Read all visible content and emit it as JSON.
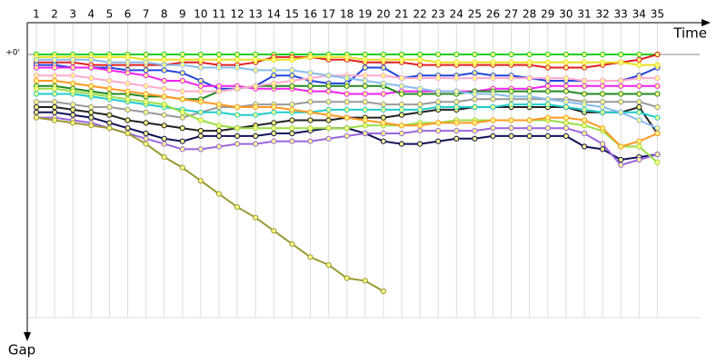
{
  "chart_data": {
    "type": "line",
    "x_label": "Time",
    "y_label": "Gap",
    "categories": [
      "1",
      "2",
      "3",
      "4",
      "5",
      "6",
      "7",
      "8",
      "9",
      "10",
      "11",
      "12",
      "13",
      "14",
      "15",
      "16",
      "17",
      "18",
      "19",
      "20",
      "21",
      "22",
      "23",
      "24",
      "25",
      "26",
      "27",
      "28",
      "29",
      "30",
      "31",
      "32",
      "33",
      "34",
      "35"
    ],
    "ylim": [
      0,
      100
    ],
    "yticks": [
      {
        "value": 0,
        "label": "+0'"
      }
    ],
    "grid": true,
    "series": [
      {
        "color": "#22cc22",
        "values": [
          0,
          0,
          0,
          0,
          0,
          0,
          0,
          0,
          0,
          0,
          0,
          0,
          0,
          0,
          0,
          0,
          0,
          0,
          0,
          0,
          0,
          0,
          0,
          0,
          0,
          0,
          0,
          0,
          0,
          0,
          0,
          0,
          0,
          0,
          0
        ]
      },
      {
        "color": "#e02020",
        "values": [
          3,
          3,
          3,
          4,
          4,
          4,
          4,
          4,
          3,
          3,
          4,
          4,
          3,
          1,
          1,
          1,
          2,
          2,
          3,
          3,
          3,
          4,
          4,
          4,
          4,
          4,
          4,
          4,
          5,
          5,
          5,
          4,
          3,
          2,
          0
        ]
      },
      {
        "color": "#2244dd",
        "values": [
          4,
          4,
          5,
          5,
          5,
          6,
          6,
          6,
          7,
          10,
          13,
          13,
          12,
          8,
          8,
          10,
          11,
          11,
          5,
          5,
          9,
          8,
          8,
          8,
          7,
          8,
          8,
          9,
          10,
          10,
          10,
          10,
          10,
          8,
          5
        ]
      },
      {
        "color": "#e8e020",
        "values": [
          1,
          1,
          1,
          1,
          1,
          1,
          2,
          2,
          2,
          2,
          2,
          2,
          2,
          2,
          2,
          1,
          1,
          1,
          2,
          2,
          2,
          2,
          3,
          3,
          3,
          3,
          3,
          3,
          3,
          3,
          3,
          3,
          3,
          4,
          4
        ]
      },
      {
        "color": "#ee22ee",
        "values": [
          5,
          5,
          5,
          5,
          6,
          7,
          8,
          10,
          10,
          12,
          12,
          12,
          13,
          13,
          13,
          14,
          14,
          15,
          15,
          15,
          14,
          14,
          14,
          14,
          14,
          13,
          13,
          13,
          12,
          12,
          12,
          12,
          12,
          12,
          12
        ]
      },
      {
        "color": "#228822",
        "values": [
          12,
          12,
          13,
          14,
          15,
          15,
          16,
          16,
          17,
          17,
          14,
          13,
          12,
          12,
          12,
          12,
          12,
          12,
          12,
          12,
          15,
          15,
          15,
          15,
          14,
          14,
          14,
          14,
          14,
          14,
          15,
          15,
          15,
          15,
          15
        ]
      },
      {
        "color": "#222222",
        "values": [
          20,
          20,
          21,
          22,
          23,
          25,
          26,
          27,
          28,
          29,
          29,
          28,
          27,
          26,
          25,
          25,
          25,
          24,
          24,
          24,
          23,
          22,
          21,
          21,
          20,
          20,
          20,
          20,
          20,
          20,
          22,
          22,
          22,
          20,
          30
        ]
      },
      {
        "color": "#111155",
        "values": [
          22,
          22,
          23,
          24,
          26,
          28,
          30,
          32,
          33,
          31,
          31,
          31,
          31,
          30,
          30,
          29,
          28,
          28,
          30,
          33,
          34,
          34,
          33,
          32,
          32,
          31,
          31,
          31,
          31,
          31,
          35,
          36,
          40,
          39,
          38
        ]
      },
      {
        "color": "#999999",
        "values": [
          18,
          18,
          19,
          20,
          20,
          21,
          22,
          23,
          24,
          22,
          20,
          20,
          19,
          19,
          19,
          18,
          18,
          18,
          18,
          19,
          19,
          19,
          18,
          18,
          17,
          17,
          17,
          17,
          17,
          17,
          18,
          18,
          18,
          18,
          20
        ]
      },
      {
        "color": "#22cccc",
        "values": [
          15,
          15,
          15,
          16,
          17,
          18,
          19,
          20,
          21,
          22,
          22,
          23,
          23,
          22,
          22,
          22,
          21,
          21,
          21,
          21,
          21,
          21,
          20,
          20,
          20,
          20,
          19,
          19,
          19,
          20,
          21,
          22,
          22,
          22,
          24
        ]
      },
      {
        "color": "#9966dd",
        "values": [
          24,
          24,
          25,
          26,
          28,
          30,
          32,
          34,
          36,
          36,
          35,
          34,
          34,
          33,
          33,
          33,
          32,
          31,
          30,
          30,
          30,
          29,
          29,
          29,
          29,
          28,
          28,
          28,
          28,
          28,
          30,
          34,
          42,
          40,
          38
        ]
      },
      {
        "color": "#ffaacc",
        "values": [
          8,
          8,
          8,
          9,
          10,
          11,
          12,
          13,
          14,
          14,
          14,
          13,
          12,
          11,
          10,
          9,
          8,
          8,
          8,
          8,
          9,
          9,
          9,
          9,
          9,
          9,
          9,
          9,
          9,
          9,
          10,
          10,
          10,
          9,
          9
        ]
      },
      {
        "color": "#99dd44",
        "values": [
          13,
          13,
          14,
          15,
          16,
          17,
          18,
          19,
          22,
          25,
          27,
          28,
          28,
          28,
          28,
          28,
          28,
          28,
          27,
          27,
          27,
          26,
          26,
          25,
          25,
          25,
          25,
          25,
          25,
          26,
          27,
          29,
          35,
          35,
          41
        ]
      },
      {
        "color": "#999933",
        "values": [
          24,
          25,
          26,
          27,
          28,
          30,
          34,
          39,
          43,
          48,
          53,
          58,
          62,
          67,
          72,
          77,
          80,
          85,
          86,
          90,
          null,
          null,
          null,
          null,
          null,
          null,
          null,
          null,
          null,
          null,
          null,
          null,
          null,
          null,
          null
        ]
      },
      {
        "color": "#ff9922",
        "values": [
          10,
          10,
          11,
          12,
          13,
          14,
          15,
          16,
          17,
          18,
          19,
          20,
          20,
          20,
          21,
          22,
          23,
          24,
          25,
          26,
          27,
          27,
          26,
          26,
          26,
          25,
          25,
          25,
          24,
          24,
          25,
          28,
          35,
          33,
          30
        ]
      },
      {
        "color": "#88bbee",
        "values": [
          2,
          2,
          2,
          2,
          3,
          3,
          3,
          4,
          4,
          5,
          5,
          5,
          6,
          6,
          6,
          7,
          8,
          9,
          10,
          11,
          12,
          13,
          14,
          14,
          15,
          15,
          16,
          16,
          17,
          18,
          19,
          20,
          22,
          25,
          28
        ]
      }
    ]
  }
}
